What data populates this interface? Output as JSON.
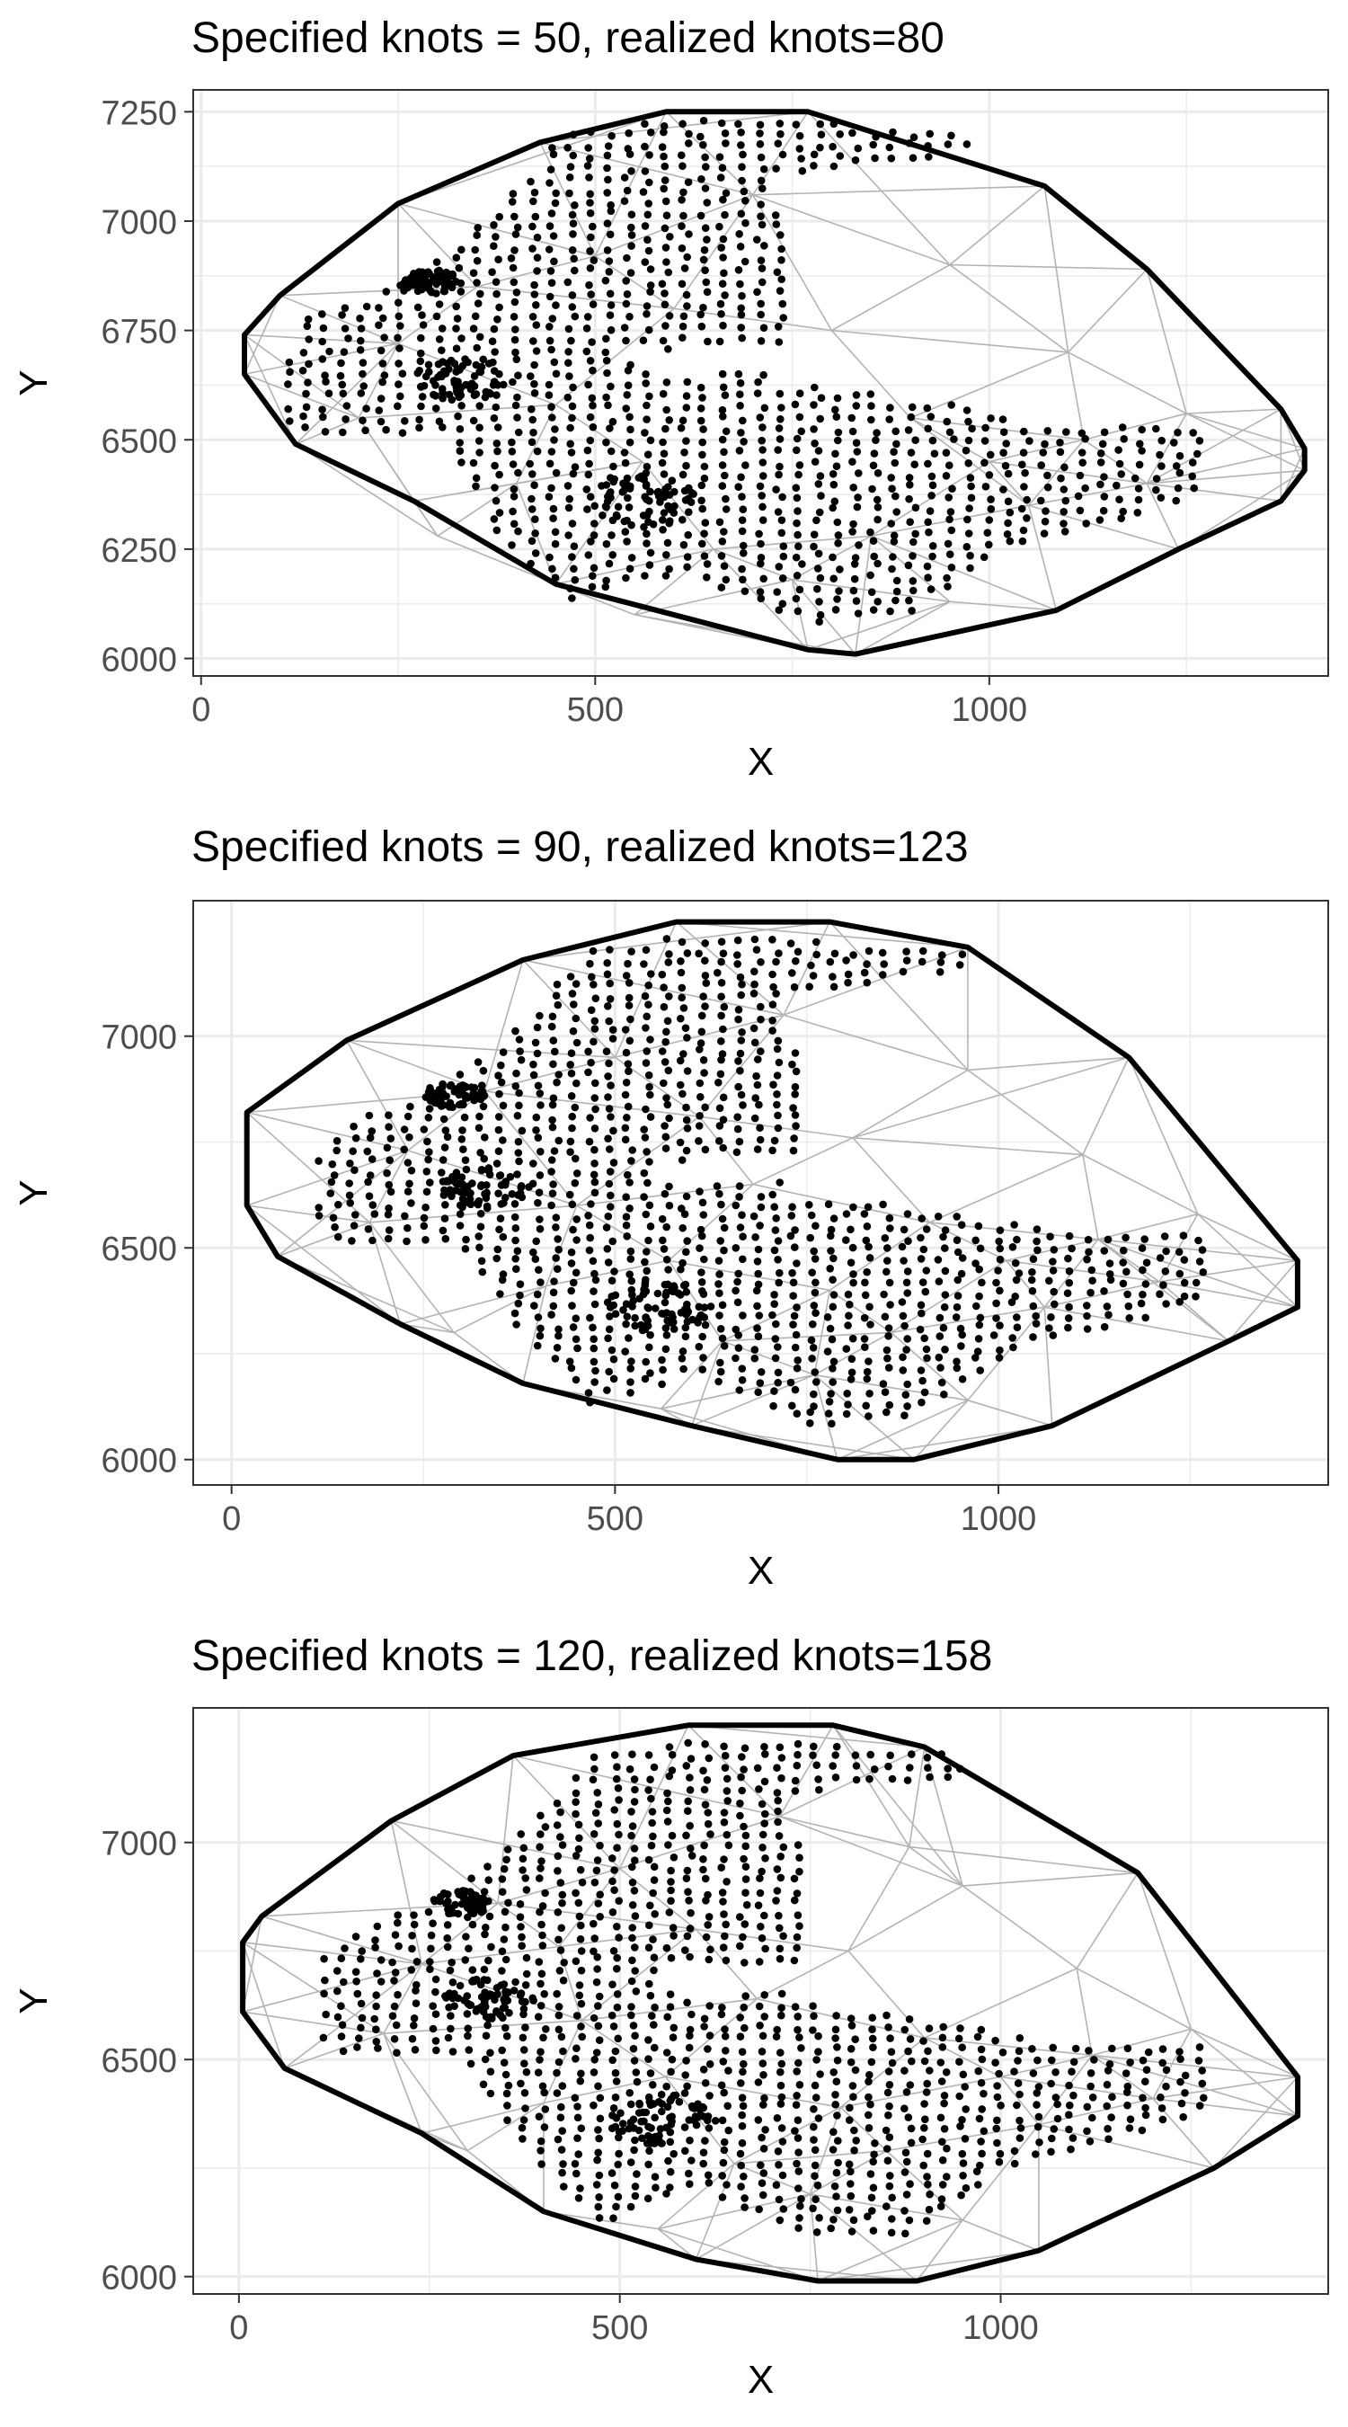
{
  "chart_data": [
    {
      "type": "scatter",
      "title": "Specified knots = 50, realized knots=80",
      "xlabel": "X",
      "ylabel": "Y",
      "xlim": [
        -10,
        1430
      ],
      "ylim": [
        5960,
        7300
      ],
      "xticks": [
        0,
        500,
        1000
      ],
      "yticks": [
        6000,
        6250,
        6500,
        6750,
        7000,
        7250
      ],
      "ytick_labels": [
        "6000",
        "6250",
        "6500",
        "6750",
        "7000",
        "7250"
      ],
      "grid": true,
      "legend": "none",
      "boundary": [
        [
          830,
          6010
        ],
        [
          1085,
          6110
        ],
        [
          1240,
          6250
        ],
        [
          1370,
          6360
        ],
        [
          1400,
          6430
        ],
        [
          1400,
          6480
        ],
        [
          1370,
          6570
        ],
        [
          1200,
          6890
        ],
        [
          1070,
          7080
        ],
        [
          770,
          7250
        ],
        [
          590,
          7250
        ],
        [
          430,
          7180
        ],
        [
          250,
          7040
        ],
        [
          100,
          6830
        ],
        [
          55,
          6740
        ],
        [
          55,
          6650
        ],
        [
          120,
          6490
        ],
        [
          270,
          6360
        ],
        [
          450,
          6170
        ],
        [
          770,
          6020
        ]
      ],
      "knots": [
        [
          500,
          6920
        ],
        [
          700,
          7060
        ],
        [
          450,
          6580
        ],
        [
          650,
          6250
        ],
        [
          850,
          6280
        ],
        [
          1050,
          6350
        ],
        [
          1200,
          6400
        ],
        [
          350,
          6850
        ],
        [
          250,
          6720
        ],
        [
          200,
          6550
        ],
        [
          600,
          6800
        ],
        [
          900,
          6550
        ],
        [
          1000,
          6450
        ],
        [
          1120,
          6500
        ],
        [
          800,
          6750
        ],
        [
          950,
          6900
        ],
        [
          1100,
          6700
        ],
        [
          1250,
          6560
        ],
        [
          300,
          6280
        ],
        [
          550,
          6100
        ],
        [
          750,
          6180
        ],
        [
          950,
          6130
        ],
        [
          400,
          6400
        ],
        [
          560,
          6450
        ]
      ],
      "colors": {
        "hull": "#000000",
        "mesh": "#b3b3b3",
        "points": "#000000",
        "grid": "#ebebeb"
      },
      "point_summary": "approx. 1000 survey locations on a regular-ish lattice covering the study region"
    },
    {
      "type": "scatter",
      "title": "Specified knots = 90, realized knots=123",
      "xlabel": "X",
      "ylabel": "Y",
      "xlim": [
        -50,
        1430
      ],
      "ylim": [
        5940,
        7320
      ],
      "xticks": [
        0,
        500,
        1000
      ],
      "yticks": [
        6000,
        6500,
        7000
      ],
      "ytick_labels": [
        "6000",
        "6500",
        "7000"
      ],
      "grid": true,
      "legend": "none",
      "boundary": [
        [
          790,
          6000
        ],
        [
          890,
          6000
        ],
        [
          1070,
          6080
        ],
        [
          1300,
          6280
        ],
        [
          1390,
          6360
        ],
        [
          1390,
          6470
        ],
        [
          1170,
          6950
        ],
        [
          960,
          7210
        ],
        [
          780,
          7270
        ],
        [
          580,
          7270
        ],
        [
          380,
          7180
        ],
        [
          150,
          6990
        ],
        [
          20,
          6820
        ],
        [
          20,
          6600
        ],
        [
          60,
          6480
        ],
        [
          220,
          6320
        ],
        [
          380,
          6180
        ],
        [
          600,
          6080
        ]
      ],
      "knots": [
        [
          500,
          6950
        ],
        [
          720,
          7050
        ],
        [
          450,
          6600
        ],
        [
          640,
          6280
        ],
        [
          860,
          6300
        ],
        [
          1060,
          6360
        ],
        [
          1210,
          6420
        ],
        [
          330,
          6870
        ],
        [
          230,
          6730
        ],
        [
          180,
          6560
        ],
        [
          610,
          6810
        ],
        [
          910,
          6560
        ],
        [
          1010,
          6470
        ],
        [
          1130,
          6520
        ],
        [
          810,
          6760
        ],
        [
          960,
          6920
        ],
        [
          1110,
          6720
        ],
        [
          1260,
          6580
        ],
        [
          290,
          6300
        ],
        [
          560,
          6120
        ],
        [
          760,
          6200
        ],
        [
          960,
          6140
        ],
        [
          410,
          6410
        ],
        [
          570,
          6470
        ],
        [
          680,
          6650
        ],
        [
          780,
          6400
        ]
      ],
      "colors": {
        "hull": "#000000",
        "mesh": "#b3b3b3",
        "points": "#000000",
        "grid": "#ebebeb"
      },
      "point_summary": "approx. 1000 survey locations on a regular-ish lattice covering the study region"
    },
    {
      "type": "scatter",
      "title": "Specified knots = 120, realized knots=158",
      "xlabel": "X",
      "ylabel": "Y",
      "xlim": [
        -60,
        1430
      ],
      "ylim": [
        5960,
        7310
      ],
      "xticks": [
        0,
        500,
        1000
      ],
      "yticks": [
        6000,
        6500,
        7000
      ],
      "ytick_labels": [
        "6000",
        "6500",
        "7000"
      ],
      "grid": true,
      "legend": "none",
      "boundary": [
        [
          760,
          5990
        ],
        [
          890,
          5990
        ],
        [
          1050,
          6060
        ],
        [
          1280,
          6250
        ],
        [
          1390,
          6370
        ],
        [
          1390,
          6460
        ],
        [
          1180,
          6930
        ],
        [
          900,
          7220
        ],
        [
          780,
          7270
        ],
        [
          590,
          7270
        ],
        [
          360,
          7200
        ],
        [
          200,
          7050
        ],
        [
          30,
          6830
        ],
        [
          5,
          6770
        ],
        [
          5,
          6610
        ],
        [
          60,
          6480
        ],
        [
          240,
          6330
        ],
        [
          400,
          6150
        ],
        [
          600,
          6040
        ]
      ],
      "knots": [
        [
          500,
          6940
        ],
        [
          710,
          7060
        ],
        [
          450,
          6590
        ],
        [
          650,
          6260
        ],
        [
          850,
          6290
        ],
        [
          1050,
          6350
        ],
        [
          1200,
          6410
        ],
        [
          340,
          6860
        ],
        [
          240,
          6720
        ],
        [
          190,
          6560
        ],
        [
          600,
          6800
        ],
        [
          900,
          6550
        ],
        [
          1000,
          6460
        ],
        [
          1120,
          6510
        ],
        [
          800,
          6750
        ],
        [
          950,
          6900
        ],
        [
          1100,
          6710
        ],
        [
          1250,
          6570
        ],
        [
          300,
          6290
        ],
        [
          550,
          6110
        ],
        [
          750,
          6190
        ],
        [
          950,
          6130
        ],
        [
          400,
          6400
        ],
        [
          560,
          6460
        ],
        [
          680,
          6640
        ],
        [
          790,
          6390
        ],
        [
          420,
          6760
        ],
        [
          880,
          6990
        ]
      ],
      "colors": {
        "hull": "#000000",
        "mesh": "#b3b3b3",
        "points": "#000000",
        "grid": "#ebebeb"
      },
      "point_summary": "approx. 1000 survey locations on a regular-ish lattice covering the study region"
    }
  ]
}
